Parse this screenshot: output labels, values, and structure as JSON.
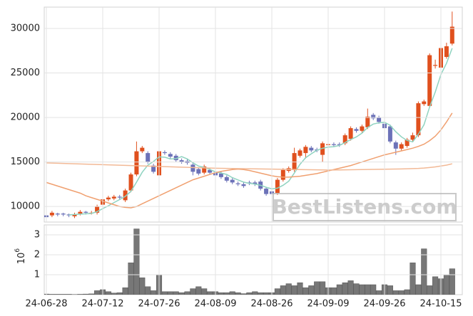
{
  "chart_data": [
    {
      "type": "candlestick",
      "ylim": [
        8250,
        32400
      ],
      "yticks": [
        10000,
        15000,
        20000,
        25000,
        30000
      ],
      "grid": true,
      "up_color": "#e0501e",
      "down_color": "#6c72b8",
      "watermark": "BestListens.com",
      "open": [
        9000,
        9000,
        9200,
        9200,
        9100,
        8900,
        9200,
        9400,
        9300,
        9300,
        10200,
        10800,
        10900,
        11100,
        10700,
        11800,
        13600,
        16200,
        16000,
        14600,
        13500,
        16100,
        15900,
        15700,
        15200,
        15100,
        14700,
        14200,
        13800,
        14100,
        13800,
        13700,
        13300,
        13000,
        12600,
        12500,
        12700,
        12700,
        12800,
        12000,
        11700,
        11500,
        13000,
        14000,
        14100,
        15700,
        16000,
        16600,
        16400,
        15800,
        16900,
        17000,
        17000,
        17100,
        17600,
        18700,
        18500,
        18900,
        20300,
        20000,
        19300,
        19000,
        17200,
        16500,
        16800,
        17500,
        18000,
        21500,
        21300,
        25800,
        25600,
        26800,
        28300
      ],
      "high": [
        9200,
        9500,
        9300,
        9300,
        9200,
        9300,
        9600,
        9500,
        9500,
        10200,
        11000,
        11200,
        11300,
        11300,
        12000,
        13800,
        17300,
        16800,
        16200,
        14800,
        16400,
        16300,
        16100,
        15900,
        15400,
        15300,
        14900,
        14400,
        14700,
        14300,
        14000,
        13900,
        13500,
        13200,
        12800,
        12700,
        12900,
        12900,
        13000,
        12200,
        11900,
        13200,
        14300,
        14500,
        16600,
        16500,
        16900,
        16800,
        16600,
        17300,
        17200,
        17200,
        17200,
        18200,
        19000,
        18900,
        19200,
        21000,
        20500,
        20200,
        19500,
        19200,
        17400,
        17200,
        17700,
        18300,
        21800,
        22000,
        27200,
        26500,
        28000,
        28400,
        31900
      ],
      "low": [
        8600,
        8800,
        8900,
        8900,
        8800,
        8700,
        9000,
        9100,
        9100,
        9100,
        10000,
        10600,
        10700,
        10800,
        10500,
        11600,
        13400,
        16000,
        14800,
        13700,
        13300,
        15800,
        15400,
        15000,
        14800,
        14700,
        13500,
        13500,
        13600,
        13600,
        13300,
        13100,
        12700,
        12500,
        12300,
        12100,
        12400,
        12300,
        11800,
        11200,
        11200,
        11300,
        12800,
        13800,
        13900,
        15500,
        15400,
        16100,
        16100,
        15000,
        16700,
        16700,
        16700,
        16900,
        17400,
        18300,
        18300,
        18700,
        19700,
        19300,
        18600,
        17100,
        15800,
        16300,
        16600,
        17300,
        17800,
        21300,
        21100,
        25500,
        25400,
        26600,
        28100
      ],
      "close": [
        8800,
        9300,
        9100,
        9100,
        9000,
        9100,
        9400,
        9300,
        9300,
        10000,
        10800,
        11000,
        11100,
        11000,
        11800,
        13600,
        16200,
        16600,
        15000,
        13900,
        16200,
        16000,
        15600,
        15200,
        15000,
        14900,
        13900,
        13700,
        14500,
        13800,
        13500,
        13300,
        12900,
        12700,
        12500,
        12300,
        12600,
        12500,
        12000,
        11400,
        11400,
        13000,
        14100,
        14300,
        16000,
        16300,
        16700,
        16300,
        16300,
        17100,
        17000,
        16900,
        16900,
        18000,
        18800,
        18500,
        19000,
        20100,
        19900,
        19500,
        18800,
        17300,
        16500,
        17000,
        17500,
        18000,
        21600,
        21800,
        27000,
        25900,
        27800,
        28000,
        30200
      ],
      "lines": [
        {
          "color": "#8fd3c0",
          "values": [
            null,
            null,
            null,
            null,
            9060,
            9100,
            9140,
            9180,
            9220,
            9420,
            9760,
            10080,
            10440,
            10780,
            11140,
            11700,
            12740,
            13840,
            14640,
            15060,
            15580,
            15540,
            15340,
            15380,
            15600,
            15340,
            14920,
            14540,
            14400,
            14160,
            13880,
            13760,
            13600,
            13240,
            12980,
            12740,
            12600,
            12520,
            12380,
            12160,
            11980,
            12060,
            12380,
            12840,
            13760,
            14740,
            15480,
            15920,
            16320,
            16540,
            16680,
            16720,
            16860,
            17180,
            17520,
            17820,
            18240,
            18880,
            19260,
            19400,
            19460,
            19120,
            18400,
            17820,
            17420,
            17260,
            18120,
            19180,
            21180,
            22860,
            24820,
            26100,
            27780
          ]
        },
        {
          "color": "#f0a070",
          "values": [
            12700,
            12500,
            12300,
            12100,
            11900,
            11700,
            11500,
            11200,
            11000,
            10800,
            10600,
            10400,
            10200,
            10000,
            9900,
            9850,
            10000,
            10300,
            10600,
            10900,
            11200,
            11500,
            11800,
            12100,
            12400,
            12700,
            13000,
            13200,
            13400,
            13600,
            13800,
            13950,
            14050,
            14150,
            14200,
            14150,
            14050,
            13900,
            13750,
            13600,
            13450,
            13350,
            13300,
            13300,
            13350,
            13400,
            13500,
            13600,
            13700,
            13850,
            14000,
            14150,
            14300,
            14450,
            14600,
            14800,
            15000,
            15200,
            15400,
            15600,
            15800,
            15950,
            16100,
            16250,
            16400,
            16550,
            16750,
            17000,
            17400,
            17900,
            18600,
            19500,
            20500
          ]
        },
        {
          "color": "#f2b996",
          "values": [
            14900,
            14880,
            14860,
            14840,
            14820,
            14800,
            14780,
            14760,
            14740,
            14720,
            14700,
            14680,
            14660,
            14640,
            14620,
            14600,
            14580,
            14560,
            14540,
            14520,
            14500,
            14480,
            14460,
            14440,
            14420,
            14400,
            14380,
            14360,
            14340,
            14320,
            14300,
            14290,
            14280,
            14270,
            14260,
            14250,
            14240,
            14230,
            14220,
            14210,
            14200,
            14190,
            14180,
            14170,
            14160,
            14150,
            14140,
            14130,
            14120,
            14110,
            14100,
            14100,
            14110,
            14120,
            14130,
            14140,
            14150,
            14160,
            14170,
            14180,
            14190,
            14200,
            14210,
            14220,
            14240,
            14260,
            14280,
            14320,
            14380,
            14450,
            14550,
            14650,
            14800
          ]
        }
      ]
    },
    {
      "type": "bar",
      "color": "#777777",
      "grid": true,
      "ylim": [
        0,
        3.5
      ],
      "yticks": [
        1,
        2,
        3
      ],
      "scale_base": "10",
      "scale_exponent": "6",
      "categories": [
        "24-06-28",
        null,
        null,
        null,
        null,
        null,
        null,
        null,
        null,
        null,
        "24-07-12",
        null,
        null,
        null,
        null,
        null,
        null,
        null,
        null,
        null,
        "24-07-26",
        null,
        null,
        null,
        null,
        null,
        null,
        null,
        null,
        null,
        "24-08-09",
        null,
        null,
        null,
        null,
        null,
        null,
        null,
        null,
        null,
        "24-08-26",
        null,
        null,
        null,
        null,
        null,
        null,
        null,
        null,
        null,
        "24-09-09",
        null,
        null,
        null,
        null,
        null,
        null,
        null,
        null,
        null,
        "24-09-26",
        null,
        null,
        null,
        null,
        null,
        null,
        null,
        null,
        null,
        "24-10-15",
        null,
        null
      ],
      "values": [
        0.03,
        0.02,
        0.02,
        0.02,
        0.02,
        0.01,
        0.02,
        0.03,
        0.04,
        0.2,
        0.25,
        0.15,
        0.08,
        0.1,
        0.35,
        1.6,
        3.3,
        0.85,
        0.4,
        0.2,
        1.0,
        0.15,
        0.15,
        0.15,
        0.1,
        0.15,
        0.3,
        0.4,
        0.3,
        0.15,
        0.15,
        0.1,
        0.1,
        0.15,
        0.1,
        0.05,
        0.1,
        0.15,
        0.1,
        0.1,
        0.1,
        0.3,
        0.45,
        0.55,
        0.45,
        0.6,
        0.35,
        0.45,
        0.65,
        0.65,
        0.35,
        0.35,
        0.5,
        0.6,
        0.7,
        0.55,
        0.5,
        0.5,
        0.5,
        0.2,
        0.5,
        0.45,
        0.2,
        0.2,
        0.25,
        1.6,
        0.5,
        2.3,
        0.45,
        0.9,
        0.8,
        1.0,
        1.3
      ]
    }
  ]
}
